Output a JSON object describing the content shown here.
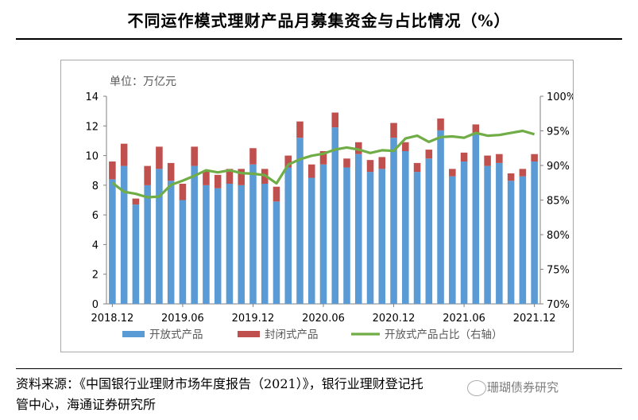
{
  "title": "不同运作模式理财产品月募集资金与占比情况（%）",
  "source_line1": "资料来源：《中国银行业理财市场年度报告（2021）》，银行业理财登记托",
  "source_line2": "管中心，海通证券研究所",
  "watermark": "珊瑚债券研究",
  "chart_data": {
    "type": "bar",
    "stacked": true,
    "unit_label": "单位：万亿元",
    "categories": [
      "2018.12",
      "2019.01",
      "2019.02",
      "2019.03",
      "2019.04",
      "2019.05",
      "2019.06",
      "2019.07",
      "2019.08",
      "2019.09",
      "2019.10",
      "2019.11",
      "2019.12",
      "2020.01",
      "2020.02",
      "2020.03",
      "2020.04",
      "2020.05",
      "2020.06",
      "2020.07",
      "2020.08",
      "2020.09",
      "2020.10",
      "2020.11",
      "2020.12",
      "2021.01",
      "2021.02",
      "2021.03",
      "2021.04",
      "2021.05",
      "2021.06",
      "2021.07",
      "2021.08",
      "2021.09",
      "2021.10",
      "2021.11",
      "2021.12"
    ],
    "x_tick_labels": [
      "2018.12",
      "2019.06",
      "2019.12",
      "2020.06",
      "2020.12",
      "2021.06",
      "2021.12"
    ],
    "ylim": [
      0,
      14
    ],
    "y_ticks": [
      0,
      2,
      4,
      6,
      8,
      10,
      12,
      14
    ],
    "y2lim": [
      70,
      100
    ],
    "y2_ticks": [
      "70%",
      "75%",
      "80%",
      "85%",
      "90%",
      "95%",
      "100%"
    ],
    "series": [
      {
        "name": "开放式产品",
        "color": "#5b9bd5",
        "values": [
          8.4,
          9.3,
          6.7,
          8.0,
          9.1,
          8.3,
          7.0,
          9.3,
          8.0,
          7.8,
          8.1,
          8.0,
          9.4,
          8.1,
          6.9,
          9.2,
          11.2,
          8.5,
          9.4,
          11.9,
          9.2,
          10.1,
          8.9,
          9.1,
          11.2,
          10.3,
          8.9,
          9.8,
          11.7,
          8.6,
          9.6,
          11.5,
          9.3,
          9.5,
          8.3,
          8.6,
          9.6
        ]
      },
      {
        "name": "封闭式产品",
        "color": "#c0504d",
        "values": [
          1.2,
          1.5,
          0.4,
          1.3,
          1.5,
          1.2,
          1.1,
          1.3,
          1.0,
          0.9,
          1.0,
          1.1,
          1.1,
          1.0,
          1.0,
          0.8,
          1.1,
          0.9,
          0.9,
          1.0,
          0.6,
          0.8,
          0.8,
          0.8,
          1.0,
          0.6,
          0.6,
          0.6,
          0.8,
          0.5,
          0.6,
          0.6,
          0.7,
          0.6,
          0.5,
          0.5,
          0.5
        ]
      },
      {
        "name": "开放式产品占比（右轴）",
        "type": "line",
        "axis": "right",
        "color": "#70ad47",
        "values": [
          87.5,
          86.2,
          85.9,
          85.4,
          85.5,
          87.2,
          87.8,
          88.5,
          89.3,
          89.0,
          89.3,
          88.9,
          88.8,
          88.6,
          87.4,
          90.1,
          90.9,
          91.4,
          91.7,
          92.3,
          92.6,
          92.3,
          91.8,
          92.2,
          92.1,
          93.9,
          94.3,
          93.4,
          94.1,
          94.2,
          94.0,
          94.7,
          94.3,
          94.4,
          94.7,
          95.0,
          94.5
        ]
      }
    ],
    "legend_position": "bottom",
    "grid": false
  }
}
